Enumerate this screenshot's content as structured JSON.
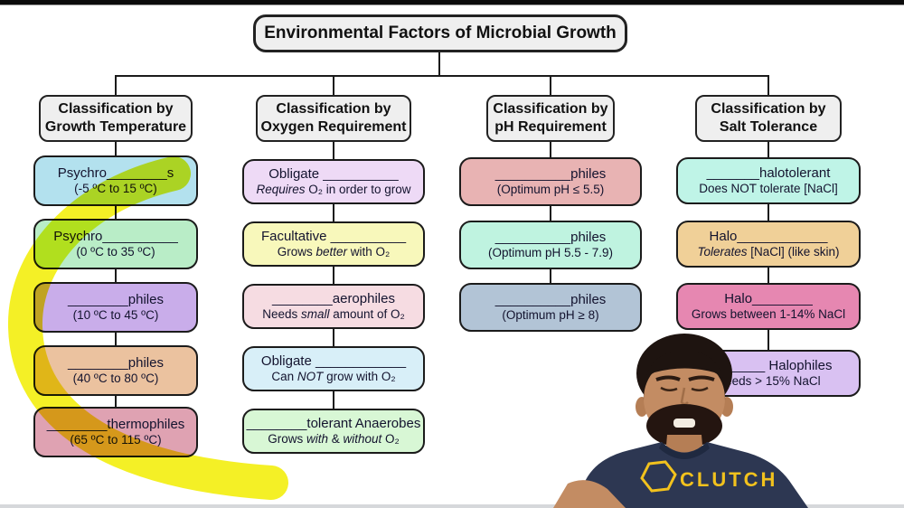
{
  "title": "Environmental Factors of Microbial Growth",
  "columns": [
    {
      "header": [
        "Classification by",
        "Growth Temperature"
      ],
      "boxes": [
        {
          "bg": "#b3e1ee",
          "line1": "Psychro________s",
          "line2": [
            {
              "t": "(-5 ºC to 15 ºC)"
            }
          ]
        },
        {
          "bg": "#b9edc7",
          "line1": "Psychro__________",
          "line2": [
            {
              "t": "(0 ºC to 35 ºC)"
            }
          ]
        },
        {
          "bg": "#c9adea",
          "line1": "________philes",
          "line2": [
            {
              "t": "(10 ºC to 45 ºC)"
            }
          ]
        },
        {
          "bg": "#ebc29f",
          "line1": "________philes",
          "line2": [
            {
              "t": "(40 ºC to 80 ºC)"
            }
          ]
        },
        {
          "bg": "#dfa2b2",
          "line1": "________thermophiles",
          "line2": [
            {
              "t": "(65 ºC to 115 ºC)"
            }
          ]
        }
      ]
    },
    {
      "header": [
        "Classification by",
        "Oxygen Requirement"
      ],
      "boxes": [
        {
          "bg": "#eedaf6",
          "line1": "Obligate __________",
          "line2": [
            {
              "t": "Requires",
              "i": true
            },
            {
              "t": " O₂ in order to grow"
            }
          ]
        },
        {
          "bg": "#f8f8bb",
          "line1": "Facultative __________",
          "line2": [
            {
              "t": "Grows "
            },
            {
              "t": "better",
              "i": true
            },
            {
              "t": " with O₂"
            }
          ]
        },
        {
          "bg": "#f6dce2",
          "line1": "________aerophiles",
          "line2": [
            {
              "t": "Needs "
            },
            {
              "t": "small",
              "i": true
            },
            {
              "t": " amount of O₂"
            }
          ]
        },
        {
          "bg": "#d8eff8",
          "line1": "Obligate ____________",
          "line2": [
            {
              "t": "Can "
            },
            {
              "t": "NOT",
              "i": true
            },
            {
              "t": " grow with O₂"
            }
          ]
        },
        {
          "bg": "#d8f7d5",
          "line1": "________tolerant Anaerobes",
          "line2": [
            {
              "t": "Grows "
            },
            {
              "t": "with",
              "i": true
            },
            {
              "t": " & "
            },
            {
              "t": "without",
              "i": true
            },
            {
              "t": " O₂"
            }
          ]
        }
      ]
    },
    {
      "header": [
        "Classification by",
        "pH Requirement"
      ],
      "boxes": [
        {
          "bg": "#e8b3b3",
          "line1": "__________philes",
          "line2": [
            {
              "t": "(Optimum pH ≤ 5.5)"
            }
          ]
        },
        {
          "bg": "#bff3e0",
          "line1": "__________philes",
          "line2": [
            {
              "t": "(Optimum pH 5.5 - 7.9)"
            }
          ]
        },
        {
          "bg": "#b2c4d6",
          "line1": "__________philes",
          "line2": [
            {
              "t": "(Optimum pH ≥ 8)"
            }
          ]
        }
      ]
    },
    {
      "header": [
        "Classification by",
        "Salt Tolerance"
      ],
      "boxes": [
        {
          "bg": "#bff4e7",
          "line1": "_______halotolerant",
          "line2": [
            {
              "t": "Does NOT tolerate [NaCl]"
            }
          ]
        },
        {
          "bg": "#f0d098",
          "line1": "Halo____________",
          "line2": [
            {
              "t": "Tolerates",
              "i": true
            },
            {
              "t": " [NaCl] (like skin)"
            }
          ]
        },
        {
          "bg": "#e687b1",
          "line1": "Halo________",
          "line2": [
            {
              "t": "Grows between 1-14% NaCl"
            }
          ]
        },
        {
          "bg": "#d9c1f2",
          "line1": "________ Halophiles",
          "line2": [
            {
              "t": "Needs > 15% NaCl"
            }
          ]
        }
      ]
    }
  ],
  "highlight": {
    "color": "#f2ee00"
  },
  "presenter": {
    "shirt_text": "CLUTCH",
    "shirt_color": "#2d3752",
    "logo_color": "#f2c21d",
    "logo_icon": "hexagon-icon"
  }
}
